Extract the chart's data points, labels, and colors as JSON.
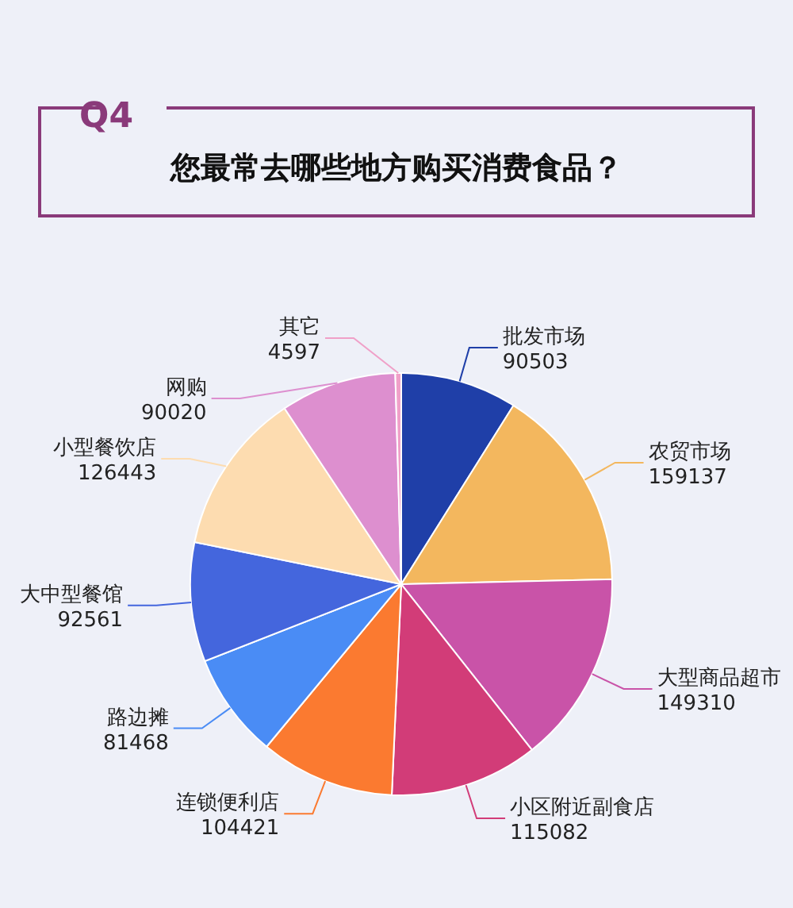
{
  "chart_data": {
    "type": "pie",
    "title": "Q4",
    "subtitle": "您最常去哪些地方购买消费食品？",
    "categories": [
      "批发市场",
      "农贸市场",
      "大型商品超市",
      "小区附近副食店",
      "连锁便利店",
      "路边摊",
      "大中型餐馆",
      "小型餐饮店",
      "网购",
      "其它"
    ],
    "values": [
      90503,
      159137,
      149310,
      115082,
      104421,
      81468,
      92561,
      126443,
      90020,
      4597
    ],
    "colors": [
      "#1f3fa8",
      "#f3b75e",
      "#c953a8",
      "#d23c78",
      "#fb7a30",
      "#4a8cf5",
      "#4466dd",
      "#fddcb0",
      "#dd8fcf",
      "#f0a0c8"
    ],
    "data_labels": true
  }
}
